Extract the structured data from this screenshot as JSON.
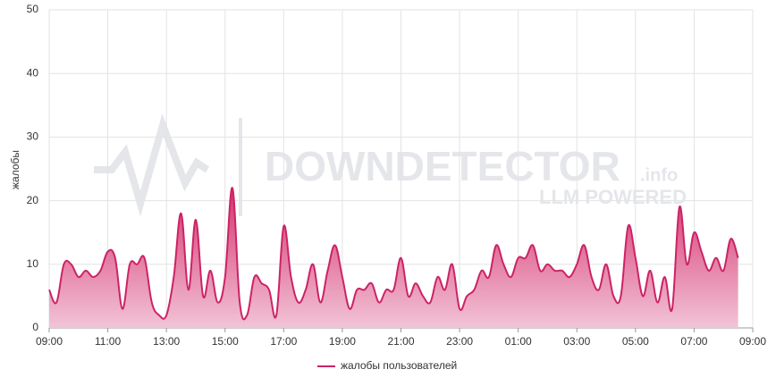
{
  "chart_data": {
    "type": "area",
    "y_label": "жалобы",
    "watermark": {
      "title": "DOWNDETECTOR",
      "suffix": ".info",
      "subtitle": "LLM POWERED"
    },
    "categories": [
      "09:00",
      null,
      null,
      null,
      null,
      null,
      null,
      null,
      "11:00",
      null,
      null,
      null,
      null,
      null,
      null,
      null,
      "13:00",
      null,
      null,
      null,
      null,
      null,
      null,
      null,
      "15:00",
      null,
      null,
      null,
      null,
      null,
      null,
      null,
      "17:00",
      null,
      null,
      null,
      null,
      null,
      null,
      null,
      "19:00",
      null,
      null,
      null,
      null,
      null,
      null,
      null,
      "21:00",
      null,
      null,
      null,
      null,
      null,
      null,
      null,
      "23:00",
      null,
      null,
      null,
      null,
      null,
      null,
      null,
      "01:00",
      null,
      null,
      null,
      null,
      null,
      null,
      null,
      "03:00",
      null,
      null,
      null,
      null,
      null,
      null,
      null,
      "05:00",
      null,
      null,
      null,
      null,
      null,
      null,
      null,
      "07:00",
      null,
      null,
      null,
      null,
      null,
      null,
      null,
      "09:00"
    ],
    "series": [
      {
        "name": "жалобы пользователей",
        "color": "#cc2366",
        "values": [
          6,
          4,
          10,
          10,
          8,
          9,
          8,
          9,
          12,
          11,
          3,
          10,
          10,
          11,
          4,
          2,
          2,
          8,
          18,
          6,
          17,
          5,
          9,
          4,
          8,
          22,
          4,
          2,
          8,
          7,
          6,
          2,
          16,
          8,
          4,
          6,
          10,
          4,
          9,
          13,
          8,
          3,
          6,
          6,
          7,
          4,
          6,
          6,
          11,
          5,
          7,
          5,
          4,
          8,
          6,
          10,
          3,
          5,
          6,
          9,
          8,
          13,
          10,
          8,
          11,
          11,
          13,
          9,
          10,
          9,
          9,
          8,
          10,
          13,
          8,
          6,
          10,
          5,
          5,
          16,
          11,
          5,
          9,
          4,
          8,
          3,
          19,
          10,
          15,
          12,
          9,
          11,
          9,
          14,
          11,
          null,
          null
        ]
      }
    ],
    "ylim": [
      0,
      50
    ],
    "yticks": [
      0,
      10,
      20,
      30,
      40,
      50
    ],
    "grid": true,
    "legend": "bottom"
  }
}
